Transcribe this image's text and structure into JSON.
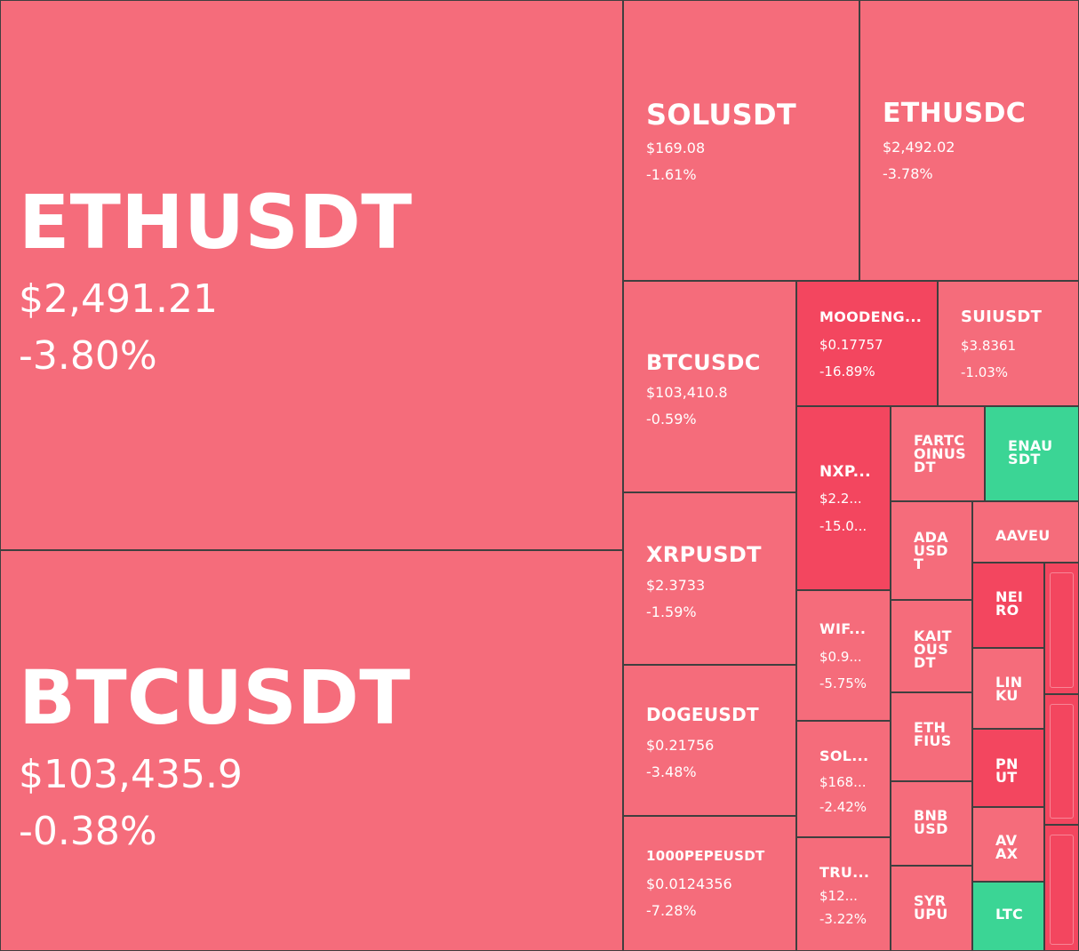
{
  "colors": {
    "down_light": "#f56c7b",
    "down_strong": "#f3465f",
    "up": "#3bd595",
    "text": "#ffffff",
    "divider": "#3f3f3f"
  },
  "tiles": [
    {
      "symbol": "ETHUSDT",
      "price": "$2,491.21",
      "change": "-3.80%",
      "color": "down_light"
    },
    {
      "symbol": "BTCUSDT",
      "price": "$103,435.9",
      "change": "-0.38%",
      "color": "down_light"
    },
    {
      "symbol": "SOLUSDT",
      "price": "$169.08",
      "change": "-1.61%",
      "color": "down_light"
    },
    {
      "symbol": "ETHUSDC",
      "price": "$2,492.02",
      "change": "-3.78%",
      "color": "down_light"
    },
    {
      "symbol": "BTCUSDC",
      "price": "$103,410.8",
      "change": "-0.59%",
      "color": "down_light"
    },
    {
      "symbol": "MOODENG...",
      "price": "$0.17757",
      "change": "-16.89%",
      "color": "down_strong"
    },
    {
      "symbol": "SUIUSDT",
      "price": "$3.8361",
      "change": "-1.03%",
      "color": "down_light"
    },
    {
      "symbol": "NXP...",
      "price": "$2.2...",
      "change": "-15.0...",
      "color": "down_strong"
    },
    {
      "symbol": "FARTC OINUS DT",
      "price": "",
      "change": "",
      "color": "down_light"
    },
    {
      "symbol": "ENAU SDT",
      "price": "",
      "change": "",
      "color": "up"
    },
    {
      "symbol": "ADA USD T",
      "price": "",
      "change": "",
      "color": "down_light"
    },
    {
      "symbol": "AAVEU",
      "price": "",
      "change": "",
      "color": "down_light"
    },
    {
      "symbol": "XRPUSDT",
      "price": "$2.3733",
      "change": "-1.59%",
      "color": "down_light"
    },
    {
      "symbol": "WIF...",
      "price": "$0.9...",
      "change": "-5.75%",
      "color": "down_light"
    },
    {
      "symbol": "KAIT OUS DT",
      "price": "",
      "change": "",
      "color": "down_light"
    },
    {
      "symbol": "NEI RO",
      "price": "",
      "change": "",
      "color": "down_strong"
    },
    {
      "symbol": "LIN KU",
      "price": "",
      "change": "",
      "color": "down_light"
    },
    {
      "symbol": "DOGEUSDT",
      "price": "$0.21756",
      "change": "-3.48%",
      "color": "down_light"
    },
    {
      "symbol": "SOL...",
      "price": "$168...",
      "change": "-2.42%",
      "color": "down_light"
    },
    {
      "symbol": "ETH FIUS",
      "price": "",
      "change": "",
      "color": "down_light"
    },
    {
      "symbol": "PN UT",
      "price": "",
      "change": "",
      "color": "down_strong"
    },
    {
      "symbol": "BNB USD",
      "price": "",
      "change": "",
      "color": "down_light"
    },
    {
      "symbol": "AV AX",
      "price": "",
      "change": "",
      "color": "down_light"
    },
    {
      "symbol": "1000PEPEUSDT",
      "price": "$0.0124356",
      "change": "-7.28%",
      "color": "down_light"
    },
    {
      "symbol": "TRU...",
      "price": "$12...",
      "change": "-3.22%",
      "color": "down_light"
    },
    {
      "symbol": "SYR UPU",
      "price": "",
      "change": "",
      "color": "down_light"
    },
    {
      "symbol": "LTC",
      "price": "",
      "change": "",
      "color": "up"
    },
    {
      "symbol": "",
      "price": "",
      "change": "",
      "color": "down_strong"
    },
    {
      "symbol": "",
      "price": "",
      "change": "",
      "color": "down_strong"
    },
    {
      "symbol": "",
      "price": "",
      "change": "",
      "color": "down_strong"
    }
  ]
}
